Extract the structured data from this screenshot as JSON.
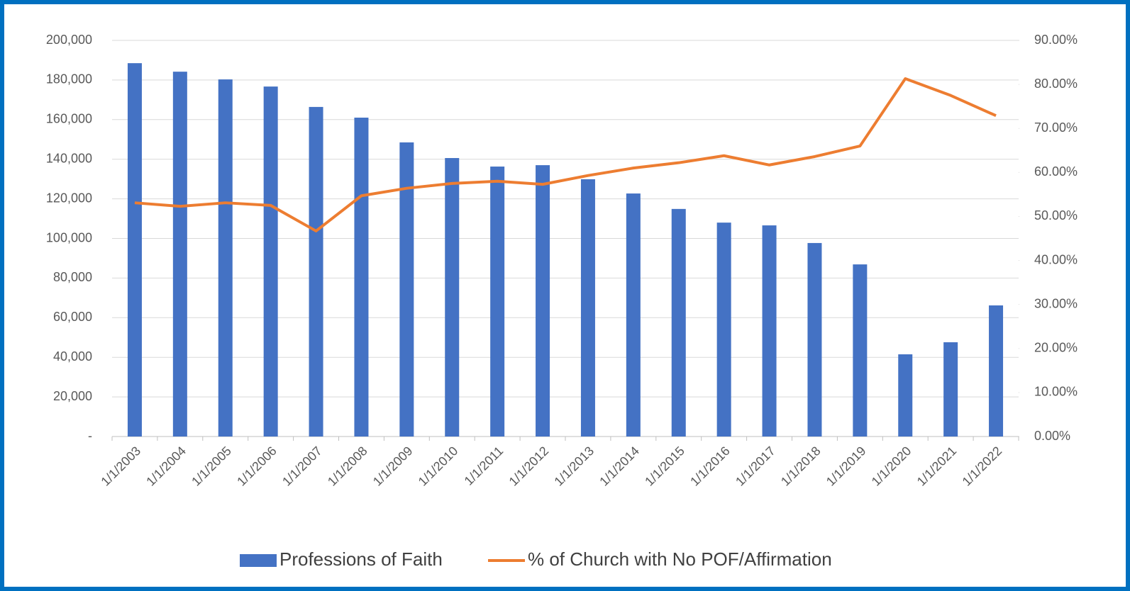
{
  "chart_data": {
    "type": "bar-line",
    "categories": [
      "1/1/2003",
      "1/1/2004",
      "1/1/2005",
      "1/1/2006",
      "1/1/2007",
      "1/1/2008",
      "1/1/2009",
      "1/1/2010",
      "1/1/2011",
      "1/1/2012",
      "1/1/2013",
      "1/1/2014",
      "1/1/2015",
      "1/1/2016",
      "1/1/2017",
      "1/1/2018",
      "1/1/2019",
      "1/1/2020",
      "1/1/2021",
      "1/1/2022"
    ],
    "series": [
      {
        "name": "Professions of Faith",
        "type": "bar",
        "color": "#4472c4",
        "axis": "y",
        "values": [
          188500,
          184200,
          180300,
          176700,
          166400,
          161000,
          148500,
          140600,
          136300,
          137000,
          129900,
          122700,
          114900,
          108000,
          106600,
          97700,
          86900,
          41500,
          47600,
          66200
        ]
      },
      {
        "name": "% of Church with No POF/Affirmation",
        "type": "line",
        "color": "#ed7d31",
        "axis": "y2",
        "values": [
          53.1,
          52.3,
          53.1,
          52.5,
          46.7,
          54.7,
          56.4,
          57.5,
          58.0,
          57.3,
          59.3,
          61.0,
          62.2,
          63.8,
          61.7,
          63.6,
          66.0,
          81.3,
          77.5,
          72.9
        ]
      }
    ],
    "ylim": [
      0,
      200000
    ],
    "yticks": [
      {
        "value": 0,
        "label": "-"
      },
      {
        "value": 20000,
        "label": "20,000"
      },
      {
        "value": 40000,
        "label": "40,000"
      },
      {
        "value": 60000,
        "label": "60,000"
      },
      {
        "value": 80000,
        "label": "80,000"
      },
      {
        "value": 100000,
        "label": "100,000"
      },
      {
        "value": 120000,
        "label": "120,000"
      },
      {
        "value": 140000,
        "label": "140,000"
      },
      {
        "value": 160000,
        "label": "160,000"
      },
      {
        "value": 180000,
        "label": "180,000"
      },
      {
        "value": 200000,
        "label": "200,000"
      }
    ],
    "y2lim": [
      0,
      90
    ],
    "y2ticks": [
      {
        "value": 0,
        "label": "0.00%"
      },
      {
        "value": 10,
        "label": "10.00%"
      },
      {
        "value": 20,
        "label": "20.00%"
      },
      {
        "value": 30,
        "label": "30.00%"
      },
      {
        "value": 40,
        "label": "40.00%"
      },
      {
        "value": 50,
        "label": "50.00%"
      },
      {
        "value": 60,
        "label": "60.00%"
      },
      {
        "value": 70,
        "label": "70.00%"
      },
      {
        "value": 80,
        "label": "80.00%"
      },
      {
        "value": 90,
        "label": "90.00%"
      }
    ],
    "grid": true,
    "legend": "bottom"
  }
}
